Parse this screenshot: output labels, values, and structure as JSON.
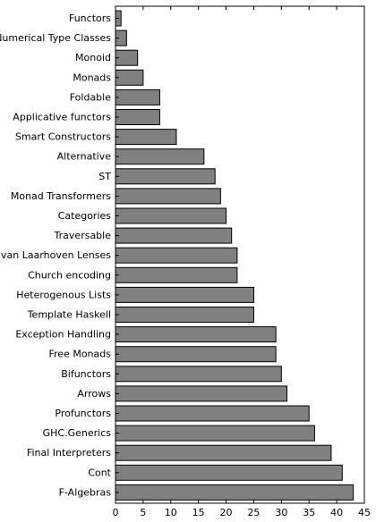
{
  "chart_data": {
    "type": "bar",
    "orientation": "horizontal",
    "title": "",
    "xlabel": "",
    "ylabel": "",
    "xlim": [
      0,
      45
    ],
    "xticks": [
      0,
      5,
      10,
      15,
      20,
      25,
      30,
      35,
      40,
      45
    ],
    "grid": false,
    "legend": "none",
    "bar_color": "#808080",
    "edge_color": "#000000",
    "categories": [
      "Functors",
      "Numerical Type Classes",
      "Monoid",
      "Monads",
      "Foldable",
      "Applicative functors",
      "Smart Constructors",
      "Alternative",
      "ST",
      "Monad Transformers",
      "Categories",
      "Traversable",
      "van Laarhoven Lenses",
      "Church encoding",
      "Heterogenous Lists",
      "Template Haskell",
      "Exception Handling",
      "Free Monads",
      "Bifunctors",
      "Arrows",
      "Profunctors",
      "GHC.Generics",
      "Final Interpreters",
      "Cont",
      "F-Algebras"
    ],
    "values": [
      1,
      2,
      4,
      5,
      8,
      8,
      11,
      16,
      18,
      19,
      20,
      21,
      22,
      22,
      25,
      25,
      29,
      29,
      30,
      31,
      35,
      36,
      39,
      41,
      43
    ]
  }
}
